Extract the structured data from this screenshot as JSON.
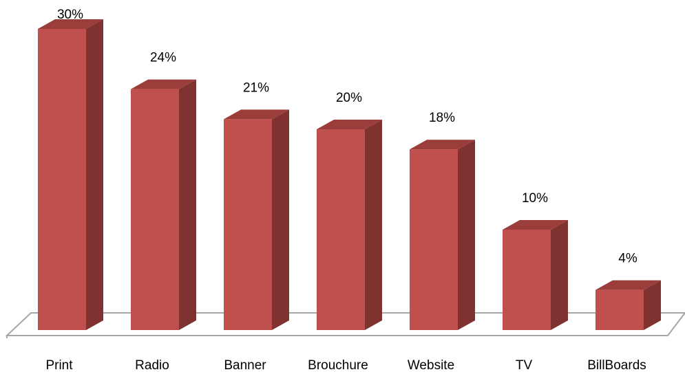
{
  "chart_data": {
    "type": "bar3d",
    "categories": [
      "Print",
      "Radio",
      "Banner",
      "Brouchure",
      "Website",
      "TV",
      "BillBoards"
    ],
    "values": [
      30,
      24,
      21,
      20,
      18,
      10,
      4
    ],
    "value_labels": [
      "30%",
      "24%",
      "21%",
      "20%",
      "18%",
      "10%",
      "4%"
    ],
    "color": "#c0504d"
  }
}
